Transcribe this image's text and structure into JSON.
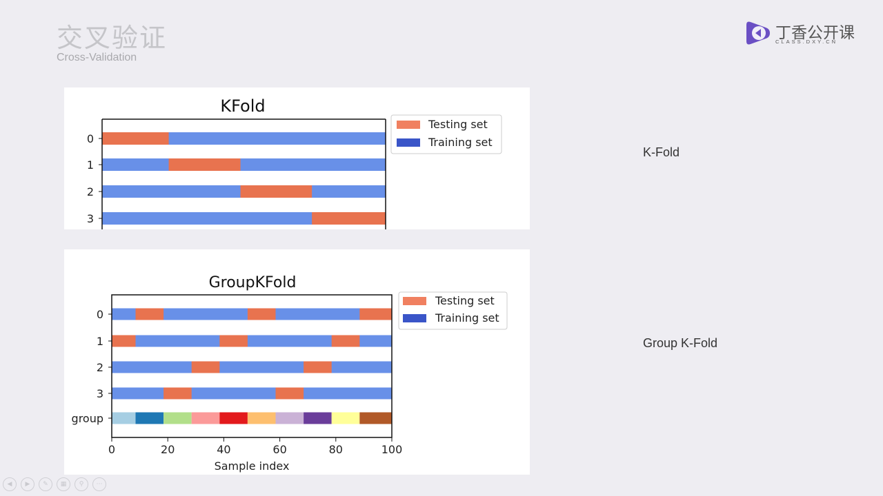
{
  "slide": {
    "title": "交叉验证",
    "subtitle": "Cross-Validation"
  },
  "logo": {
    "name": "丁香公开课",
    "domain": "CLASS.DXY.CN",
    "color": "#6a4fc4"
  },
  "labels": {
    "kfold": "K-Fold",
    "group_kfold": "Group K-Fold"
  },
  "toolbar": {
    "icons": [
      "prev-icon",
      "next-icon",
      "pen-icon",
      "layout-icon",
      "zoom-icon",
      "more-icon"
    ]
  },
  "colors": {
    "testing": "#e8734f",
    "training": "#6890e8",
    "legend_testing": "#f08060",
    "legend_training": "#3a55c8"
  },
  "chart_data": [
    {
      "type": "bar",
      "title": "KFold",
      "rows": [
        "0",
        "1",
        "2",
        "3"
      ],
      "legend": [
        "Testing set",
        "Training set"
      ],
      "legend_position": "top-right (outside axes)",
      "x_range": [
        0,
        100
      ],
      "folds": [
        {
          "row": "0",
          "test": [
            [
              0,
              23.5
            ]
          ]
        },
        {
          "row": "1",
          "test": [
            [
              23.5,
              48.8
            ]
          ]
        },
        {
          "row": "2",
          "test": [
            [
              48.8,
              74
            ]
          ]
        },
        {
          "row": "3",
          "test": [
            [
              74,
              100
            ]
          ]
        }
      ]
    },
    {
      "type": "bar",
      "title": "GroupKFold",
      "rows": [
        "0",
        "1",
        "2",
        "3"
      ],
      "group_row_label": "group",
      "xlabel": "Sample index",
      "xlim": [
        0,
        100
      ],
      "xticks": [
        "0",
        "20",
        "40",
        "60",
        "80",
        "100"
      ],
      "legend": [
        "Testing set",
        "Training set"
      ],
      "legend_position": "top-right (outside axes)",
      "folds": [
        {
          "row": "0",
          "test": [
            [
              8.5,
              18.5
            ],
            [
              48.5,
              58.5
            ],
            [
              88.5,
              100
            ]
          ]
        },
        {
          "row": "1",
          "test": [
            [
              0,
              8.5
            ],
            [
              38.5,
              48.5
            ],
            [
              78.5,
              88.5
            ]
          ]
        },
        {
          "row": "2",
          "test": [
            [
              28.5,
              38.5
            ],
            [
              68.5,
              78.5
            ]
          ]
        },
        {
          "row": "3",
          "test": [
            [
              18.5,
              28.5
            ],
            [
              58.5,
              68.5
            ]
          ]
        }
      ],
      "groups": [
        {
          "range": [
            0,
            8.5
          ],
          "color": "#a6cee3"
        },
        {
          "range": [
            8.5,
            18.5
          ],
          "color": "#1f78b4"
        },
        {
          "range": [
            18.5,
            28.5
          ],
          "color": "#b2df8a"
        },
        {
          "range": [
            28.5,
            38.5
          ],
          "color": "#fb9a99"
        },
        {
          "range": [
            38.5,
            48.5
          ],
          "color": "#e31a1c"
        },
        {
          "range": [
            48.5,
            58.5
          ],
          "color": "#fdbf6f"
        },
        {
          "range": [
            58.5,
            68.5
          ],
          "color": "#cab2d6"
        },
        {
          "range": [
            68.5,
            78.5
          ],
          "color": "#6a3d9a"
        },
        {
          "range": [
            78.5,
            88.5
          ],
          "color": "#ffff99"
        },
        {
          "range": [
            88.5,
            100
          ],
          "color": "#b15928"
        }
      ]
    }
  ]
}
